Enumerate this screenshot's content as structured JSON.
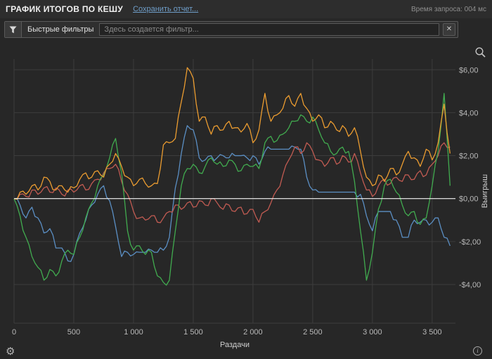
{
  "header": {
    "title": "ГРАФИК ИТОГОВ ПО КЕШУ",
    "save_report_link": "Сохранить отчет...",
    "query_time": "Время запроса: 004 мс"
  },
  "filter_bar": {
    "quick_filters_label": "Быстрые фильтры",
    "input_value": "",
    "input_placeholder": "Здесь создается фильтр...",
    "clear_button_glyph": "✕"
  },
  "icons": {
    "gear_glyph": "⚙",
    "info_glyph": "i"
  },
  "colors": {
    "background": "#272727",
    "header_background": "#2d2d2d",
    "grid": "#3d3d3d",
    "zero_line": "#f2f2f2",
    "tick_text": "#b8b8b8",
    "axis_label": "#cfcfcf",
    "link": "#6f9ec9",
    "series_blue": "#5b8fc4",
    "series_red": "#c15b52",
    "series_green": "#41ab4f",
    "series_orange": "#eb9c30"
  },
  "chart_data": {
    "type": "line",
    "title": "ГРАФИК ИТОГОВ ПО КЕШУ",
    "xlabel": "Раздачи",
    "ylabel": "Выигрыш",
    "xlim": [
      0,
      3695
    ],
    "ylim": [
      -5.8,
      6.5
    ],
    "grid": true,
    "zero_line": true,
    "legend": "none",
    "x_tick_values": [
      0,
      500,
      1000,
      1500,
      2000,
      2500,
      3000,
      3500
    ],
    "x_tick_labels": [
      "0",
      "500",
      "1 000",
      "1 500",
      "2 000",
      "2 500",
      "3 000",
      "3 500"
    ],
    "y_tick_values": [
      6,
      4,
      2,
      0,
      -2,
      -4
    ],
    "y_tick_labels": [
      "$6,00",
      "$4,00",
      "$2,00",
      "$0,00",
      "-$2,00",
      "-$4,00"
    ],
    "x": [
      0,
      50,
      100,
      150,
      200,
      250,
      300,
      350,
      400,
      450,
      500,
      550,
      600,
      650,
      700,
      750,
      800,
      850,
      900,
      950,
      1000,
      1050,
      1100,
      1150,
      1200,
      1250,
      1300,
      1350,
      1400,
      1450,
      1500,
      1550,
      1600,
      1650,
      1700,
      1750,
      1800,
      1850,
      1900,
      1950,
      2000,
      2050,
      2100,
      2150,
      2200,
      2250,
      2300,
      2350,
      2400,
      2450,
      2500,
      2550,
      2600,
      2650,
      2700,
      2750,
      2800,
      2850,
      2900,
      2950,
      3000,
      3050,
      3100,
      3150,
      3200,
      3250,
      3300,
      3350,
      3400,
      3450,
      3500,
      3550,
      3600,
      3650
    ],
    "series": [
      {
        "name": "line-blue",
        "color": "#5b8fc4",
        "values": [
          0,
          -0.3,
          -0.9,
          -0.4,
          -0.9,
          -1.6,
          -1.4,
          -2.3,
          -2.3,
          -2.9,
          -2.6,
          -1.6,
          -1.0,
          -0.3,
          0.2,
          0.6,
          -0.1,
          -1.3,
          -2.7,
          -2.5,
          -2.6,
          -2.5,
          -2.5,
          -2.4,
          -2.5,
          -2.4,
          -1.8,
          0.5,
          2.1,
          3.4,
          3.2,
          1.9,
          1.8,
          2.0,
          1.9,
          2.0,
          1.9,
          2.0,
          2.0,
          1.9,
          2.0,
          1.6,
          2.2,
          2.3,
          2.3,
          2.3,
          2.3,
          2.4,
          2.3,
          1.0,
          0.4,
          0.3,
          0.3,
          0.3,
          0.3,
          0.3,
          0.3,
          0.3,
          0.2,
          -0.8,
          -1.5,
          -0.6,
          -0.6,
          -0.6,
          -1.0,
          -1.8,
          -1.8,
          -1.0,
          -1.1,
          -1.0,
          -1.1,
          -0.9,
          -1.8,
          -2.2
        ]
      },
      {
        "name": "line-red",
        "color": "#c15b52",
        "values": [
          0,
          0.2,
          0.1,
          0.4,
          0.2,
          0.5,
          0.3,
          0.5,
          0.2,
          0.4,
          0.3,
          0.6,
          0.4,
          0.7,
          0.9,
          1.2,
          1.4,
          1.6,
          0.8,
          0.2,
          -0.6,
          -0.9,
          -1.0,
          -0.8,
          -1.1,
          -0.9,
          -0.6,
          -0.3,
          -0.5,
          -0.2,
          -0.4,
          -0.1,
          -0.3,
          0.0,
          -0.2,
          -0.5,
          -0.3,
          -0.6,
          -0.4,
          -0.7,
          -0.5,
          -1.1,
          -0.6,
          -0.2,
          0.4,
          1.1,
          1.8,
          2.4,
          2.1,
          2.6,
          2.2,
          1.8,
          1.5,
          1.9,
          1.6,
          2.0,
          1.7,
          2.1,
          1.2,
          0.4,
          0.1,
          0.6,
          0.9,
          0.7,
          1.0,
          0.8,
          1.1,
          0.9,
          1.3,
          1.1,
          1.6,
          2.0,
          2.6,
          2.4
        ]
      },
      {
        "name": "line-green",
        "color": "#41ab4f",
        "values": [
          0,
          -0.8,
          -1.8,
          -2.7,
          -3.2,
          -3.8,
          -3.3,
          -3.6,
          -2.9,
          -2.4,
          -2.6,
          -1.8,
          -0.9,
          -0.2,
          0.6,
          1.1,
          1.9,
          2.8,
          1.2,
          -1.5,
          -2.4,
          -2.2,
          -2.6,
          -2.5,
          -3.6,
          -3.9,
          -3.8,
          -1.5,
          0.6,
          1.4,
          1.6,
          1.2,
          1.5,
          1.9,
          1.6,
          1.5,
          1.8,
          1.6,
          1.3,
          1.6,
          1.5,
          1.4,
          2.6,
          2.9,
          2.7,
          3.0,
          3.3,
          3.6,
          3.9,
          3.6,
          3.8,
          3.2,
          2.6,
          2.2,
          2.1,
          2.4,
          2.2,
          0.8,
          -1.5,
          -3.8,
          -2.5,
          -0.5,
          0.6,
          0.9,
          0.3,
          -0.3,
          -0.8,
          -0.6,
          -1.2,
          -0.9,
          0.6,
          2.2,
          4.9,
          0.6
        ]
      },
      {
        "name": "line-orange",
        "color": "#eb9c30",
        "values": [
          0,
          0.3,
          0.2,
          0.6,
          0.4,
          1.0,
          0.8,
          0.4,
          0.6,
          0.3,
          0.5,
          0.9,
          1.2,
          1.0,
          1.3,
          1.0,
          1.6,
          2.1,
          1.5,
          1.0,
          0.6,
          0.9,
          0.7,
          0.6,
          0.7,
          2.5,
          2.6,
          2.8,
          4.5,
          6.1,
          5.6,
          3.6,
          3.8,
          3.0,
          3.4,
          3.2,
          3.6,
          3.3,
          3.1,
          3.5,
          2.6,
          3.2,
          4.9,
          3.6,
          3.9,
          4.2,
          4.8,
          4.3,
          4.9,
          4.2,
          3.6,
          3.9,
          3.3,
          3.6,
          3.2,
          3.4,
          2.9,
          3.3,
          2.2,
          1.0,
          0.6,
          1.1,
          0.8,
          1.4,
          1.1,
          1.6,
          2.2,
          1.9,
          1.5,
          2.3,
          1.8,
          2.6,
          4.4,
          2.1
        ]
      }
    ]
  }
}
